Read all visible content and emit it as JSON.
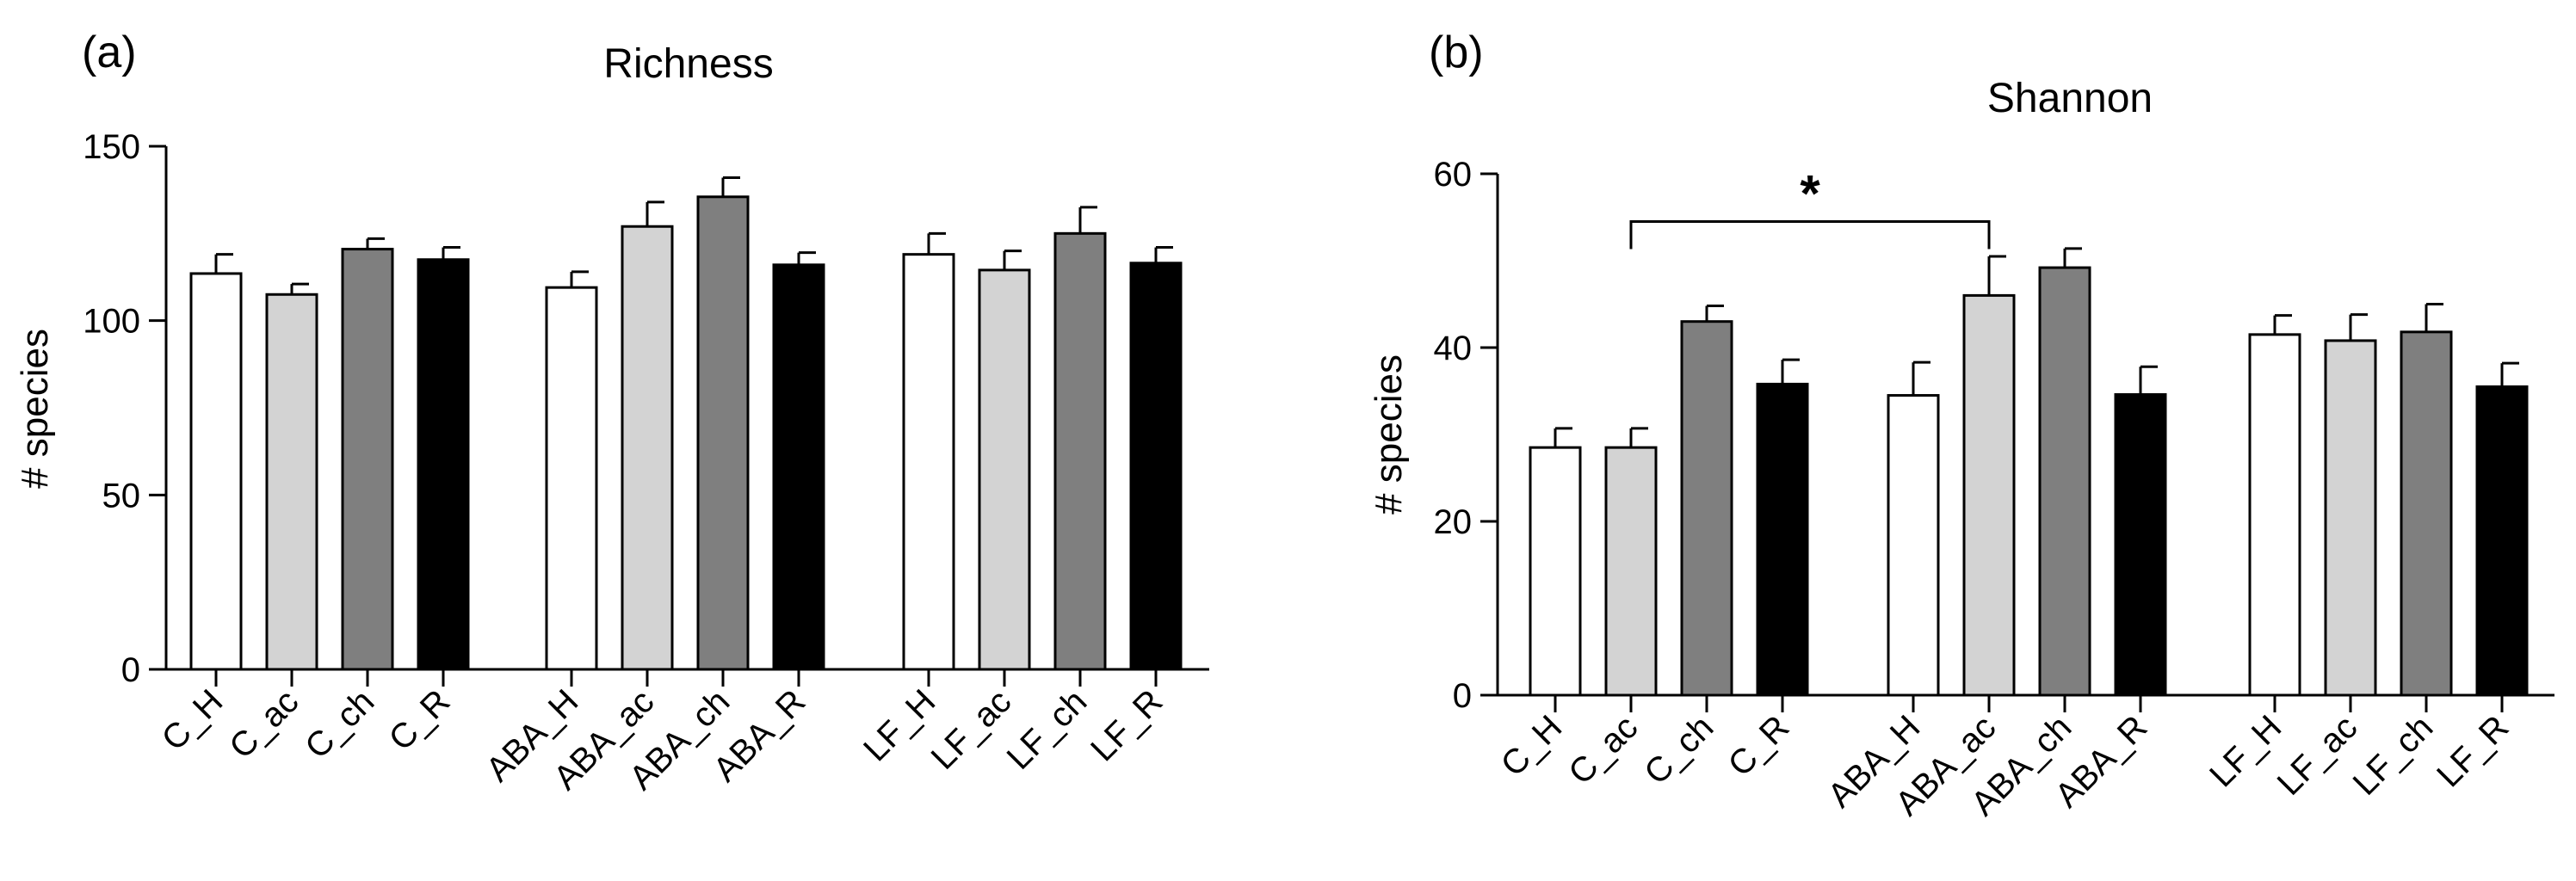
{
  "chart_data": [
    {
      "panel_label": "(a)",
      "type": "bar",
      "title": "Richness",
      "xlabel": "",
      "ylabel": "# species",
      "ylim": [
        0,
        150
      ],
      "yticks": [
        0,
        50,
        100,
        150
      ],
      "categories": [
        "C_H",
        "C_ac",
        "C_ch",
        "C_R",
        "ABA_H",
        "ABA_ac",
        "ABA_ch",
        "ABA_R",
        "LF_H",
        "LF_ac",
        "LF_ch",
        "LF_R"
      ],
      "groups": [
        "C",
        "ABA",
        "LF"
      ],
      "values": [
        113.5,
        107.5,
        120.5,
        117.5,
        109.5,
        127,
        135.5,
        116,
        119,
        114.5,
        125,
        116.5
      ],
      "errors": [
        5.5,
        3,
        3,
        3.5,
        4.5,
        7,
        5.5,
        3.5,
        6,
        5.5,
        7.5,
        4.5
      ],
      "colors": [
        "#ffffff",
        "#d3d3d3",
        "#7f7f7f",
        "#000000",
        "#ffffff",
        "#d3d3d3",
        "#7f7f7f",
        "#000000",
        "#ffffff",
        "#d3d3d3",
        "#7f7f7f",
        "#000000"
      ],
      "annotations": []
    },
    {
      "panel_label": "(b)",
      "type": "bar",
      "title": "Shannon",
      "xlabel": "",
      "ylabel": "# species",
      "ylim": [
        0,
        60
      ],
      "yticks": [
        0,
        20,
        40,
        60
      ],
      "categories": [
        "C_H",
        "C_ac",
        "C_ch",
        "C_R",
        "ABA_H",
        "ABA_ac",
        "ABA_ch",
        "ABA_R",
        "LF_H",
        "LF_ac",
        "LF_ch",
        "LF_R"
      ],
      "groups": [
        "C",
        "ABA",
        "LF"
      ],
      "values": [
        28.5,
        28.5,
        43,
        35.8,
        34.5,
        46,
        49.2,
        34.6,
        41.5,
        40.8,
        41.8,
        35.5
      ],
      "errors": [
        2.2,
        2.2,
        1.8,
        2.8,
        3.8,
        4.5,
        2.2,
        3.2,
        2.2,
        3,
        3.2,
        2.7
      ],
      "colors": [
        "#ffffff",
        "#d3d3d3",
        "#7f7f7f",
        "#000000",
        "#ffffff",
        "#d3d3d3",
        "#7f7f7f",
        "#000000",
        "#ffffff",
        "#d3d3d3",
        "#7f7f7f",
        "#000000"
      ],
      "annotations": [
        {
          "type": "significance",
          "from": "C_ac",
          "to": "ABA_ac",
          "bracket_y": 54.5,
          "label": "*"
        }
      ]
    }
  ]
}
